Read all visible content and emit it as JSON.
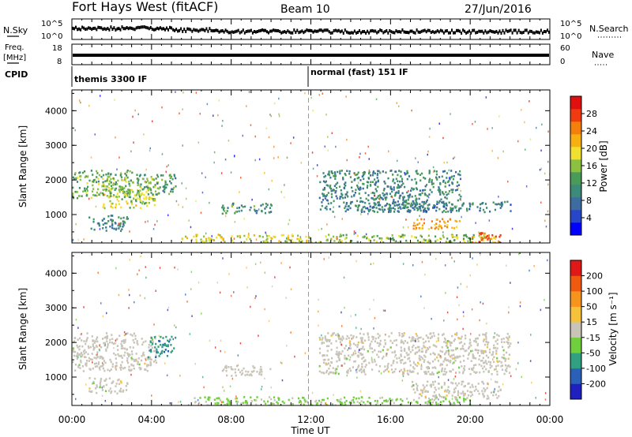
{
  "header": {
    "station": "Fort Hays West (fitACF)",
    "beam": "Beam 10",
    "date": "27/Jun/2016"
  },
  "top_strip": {
    "left_label": "N.Sky",
    "right_label": "N.Search",
    "left_ticks": [
      "10^5",
      "10^0"
    ],
    "right_ticks": [
      "10^5",
      "10^0"
    ]
  },
  "freq_strip": {
    "left_label_1": "Freq.",
    "left_label_2": "[MHz]",
    "right_label": "Nave",
    "left_ticks": [
      "18",
      "8"
    ],
    "right_ticks": [
      "60",
      "0"
    ]
  },
  "cpid": {
    "label": "CPID",
    "segments": [
      "themis 3300 IF",
      "normal (fast) 151 IF"
    ]
  },
  "power_panel": {
    "ylabel": "Slant Range [km]",
    "yticks": [
      "4000",
      "3000",
      "2000",
      "1000"
    ],
    "colorbar_label": "Power [dB]",
    "colorbar_ticks": [
      "28",
      "24",
      "20",
      "16",
      "12",
      "8",
      "4"
    ],
    "colorbar_colors": [
      "#0000ff",
      "#2846c8",
      "#3c6ca0",
      "#3c8a78",
      "#4a9b58",
      "#8cc040",
      "#f0e030",
      "#f8b010",
      "#f57f0c",
      "#f03a10",
      "#e01010"
    ]
  },
  "velocity_panel": {
    "ylabel": "Slant Range [km]",
    "yticks": [
      "4000",
      "3000",
      "2000",
      "1000"
    ],
    "colorbar_label": "Velocity [m s⁻¹]",
    "colorbar_ticks": [
      "200",
      "100",
      "50",
      "15",
      "-15",
      "-50",
      "-100",
      "-200"
    ],
    "colorbar_colors": [
      "#2020c0",
      "#2a60b8",
      "#30a080",
      "#6fcf3c",
      "#c8c4b8",
      "#f6c23c",
      "#f7941d",
      "#f05a10",
      "#e01818"
    ]
  },
  "x_axis": {
    "ticks": [
      "00:00",
      "04:00",
      "08:00",
      "12:00",
      "16:00",
      "20:00",
      "00:00"
    ],
    "label": "Time UT"
  },
  "chart_data": [
    {
      "type": "heatmap",
      "xlabel": "Time UT",
      "ylabel": "Slant Range [km]",
      "xlim": [
        0,
        24
      ],
      "ylim": [
        180,
        4600
      ],
      "colorbar": {
        "label": "Power [dB]",
        "range": [
          0,
          32
        ]
      },
      "regions": [
        {
          "x": [
            0.0,
            3.0
          ],
          "y": [
            1500,
            2300
          ],
          "value": 14
        },
        {
          "x": [
            1.5,
            4.2
          ],
          "y": [
            1200,
            2100
          ],
          "value": 17
        },
        {
          "x": [
            3.2,
            5.2
          ],
          "y": [
            1600,
            2200
          ],
          "value": 12
        },
        {
          "x": [
            0.8,
            2.8
          ],
          "y": [
            550,
            1000
          ],
          "value": 10
        },
        {
          "x": [
            7.5,
            10.0
          ],
          "y": [
            1050,
            1350
          ],
          "value": 11
        },
        {
          "x": [
            5.5,
            12.0
          ],
          "y": [
            200,
            450
          ],
          "value": 18
        },
        {
          "x": [
            12.0,
            21.5
          ],
          "y": [
            200,
            450
          ],
          "value": 16
        },
        {
          "x": [
            12.4,
            19.5
          ],
          "y": [
            1100,
            2300
          ],
          "value": 10
        },
        {
          "x": [
            14.5,
            22.0
          ],
          "y": [
            1100,
            1400
          ],
          "value": 9
        },
        {
          "x": [
            17.0,
            19.5
          ],
          "y": [
            600,
            900
          ],
          "value": 22
        },
        {
          "x": [
            20.0,
            21.5
          ],
          "y": [
            200,
            500
          ],
          "value": 26
        }
      ]
    },
    {
      "type": "heatmap",
      "xlabel": "Time UT",
      "ylabel": "Slant Range [km]",
      "xlim": [
        0,
        24
      ],
      "ylim": [
        180,
        4600
      ],
      "colorbar": {
        "label": "Velocity [m s⁻¹]",
        "range": [
          -250,
          250
        ]
      },
      "regions": [
        {
          "x": [
            0.0,
            4.2
          ],
          "y": [
            1200,
            2300
          ],
          "value": 0
        },
        {
          "x": [
            3.8,
            5.2
          ],
          "y": [
            1600,
            2200
          ],
          "value": -120
        },
        {
          "x": [
            0.8,
            2.8
          ],
          "y": [
            550,
            1000
          ],
          "value": 0
        },
        {
          "x": [
            7.5,
            10.0
          ],
          "y": [
            1050,
            1350
          ],
          "value": 0
        },
        {
          "x": [
            6.0,
            12.0
          ],
          "y": [
            200,
            450
          ],
          "value": -40
        },
        {
          "x": [
            12.0,
            20.0
          ],
          "y": [
            200,
            450
          ],
          "value": -35
        },
        {
          "x": [
            12.4,
            22.0
          ],
          "y": [
            1100,
            2300
          ],
          "value": 0
        },
        {
          "x": [
            17.0,
            21.5
          ],
          "y": [
            400,
            900
          ],
          "value": 0
        }
      ]
    }
  ]
}
